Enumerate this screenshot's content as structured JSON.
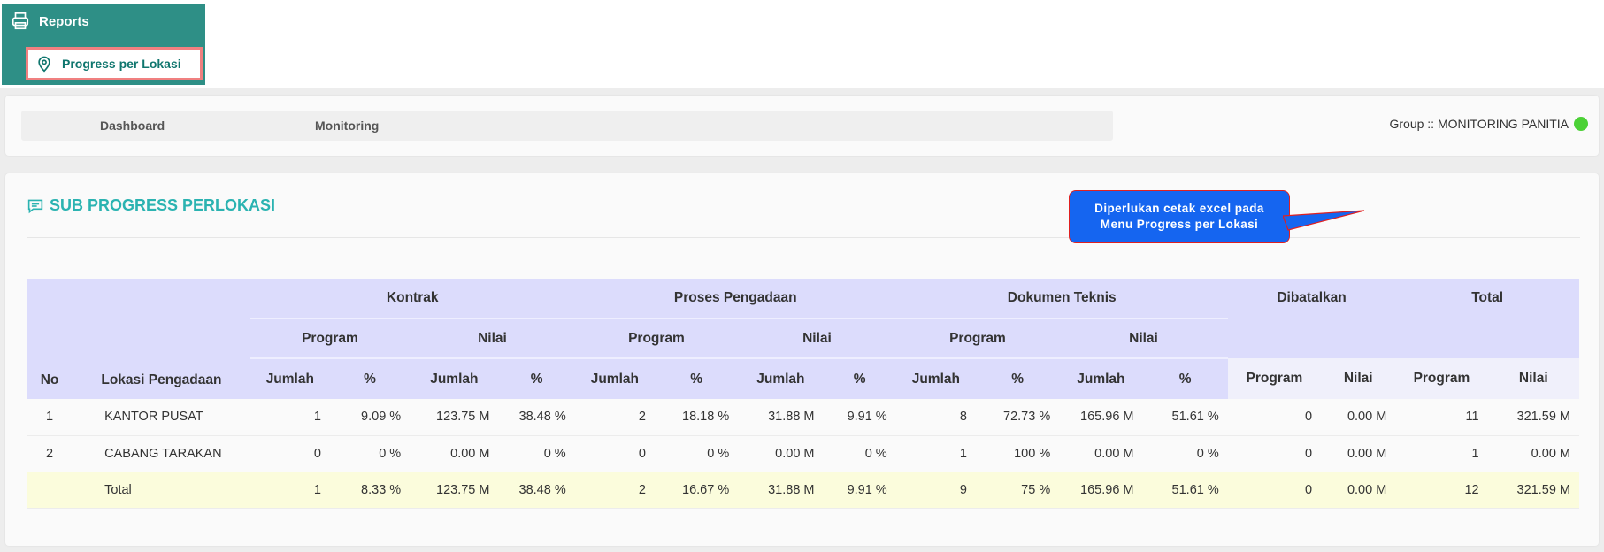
{
  "sidebar": {
    "reports_label": "Reports",
    "active_item_label": "Progress per Lokasi"
  },
  "nav": {
    "dashboard": "Dashboard",
    "monitoring": "Monitoring",
    "group_label": "Group :: MONITORING PANITIA",
    "status_color": "#4cd137"
  },
  "card": {
    "title": "SUB PROGRESS PERLOKASI"
  },
  "callout": {
    "line1": "Diperlukan cetak excel pada",
    "line2": "Menu Progress per Lokasi"
  },
  "table": {
    "group_headers": {
      "no": "No",
      "lokasi": "Lokasi Pengadaan",
      "kontrak": "Kontrak",
      "proses": "Proses Pengadaan",
      "dokumen": "Dokumen Teknis",
      "dibatalkan": "Dibatalkan",
      "total": "Total"
    },
    "sub_headers": {
      "program": "Program",
      "nilai": "Nilai"
    },
    "leaf_headers": {
      "jumlah": "Jumlah",
      "pct": "%",
      "program": "Program",
      "nilai": "Nilai"
    },
    "rows": [
      {
        "no": "1",
        "lokasi": "KANTOR PUSAT",
        "k_prog_j": "1",
        "k_prog_p": "9.09 %",
        "k_nil_j": "123.75 M",
        "k_nil_p": "38.48 %",
        "p_prog_j": "2",
        "p_prog_p": "18.18 %",
        "p_nil_j": "31.88 M",
        "p_nil_p": "9.91 %",
        "d_prog_j": "8",
        "d_prog_p": "72.73 %",
        "d_nil_j": "165.96 M",
        "d_nil_p": "51.61 %",
        "b_prog": "0",
        "b_nil": "0.00 M",
        "t_prog": "11",
        "t_nil": "321.59 M"
      },
      {
        "no": "2",
        "lokasi": "CABANG TARAKAN",
        "k_prog_j": "0",
        "k_prog_p": "0 %",
        "k_nil_j": "0.00 M",
        "k_nil_p": "0 %",
        "p_prog_j": "0",
        "p_prog_p": "0 %",
        "p_nil_j": "0.00 M",
        "p_nil_p": "0 %",
        "d_prog_j": "1",
        "d_prog_p": "100 %",
        "d_nil_j": "0.00 M",
        "d_nil_p": "0 %",
        "b_prog": "0",
        "b_nil": "0.00 M",
        "t_prog": "1",
        "t_nil": "0.00 M"
      }
    ],
    "total_row": {
      "no": "",
      "lokasi": "Total",
      "k_prog_j": "1",
      "k_prog_p": "8.33 %",
      "k_nil_j": "123.75 M",
      "k_nil_p": "38.48 %",
      "p_prog_j": "2",
      "p_prog_p": "16.67 %",
      "p_nil_j": "31.88 M",
      "p_nil_p": "9.91 %",
      "d_prog_j": "9",
      "d_prog_p": "75 %",
      "d_nil_j": "165.96 M",
      "d_nil_p": "51.61 %",
      "b_prog": "0",
      "b_nil": "0.00 M",
      "t_prog": "12",
      "t_nil": "321.59 M"
    }
  },
  "colors": {
    "sidebar_bg": "#2e8f86",
    "title_accent": "#2bb3b1",
    "header_bg": "#dcdcfc",
    "total_row_bg": "#fbfcdc",
    "callout_bg": "#1565f0",
    "callout_border": "#e02020"
  }
}
